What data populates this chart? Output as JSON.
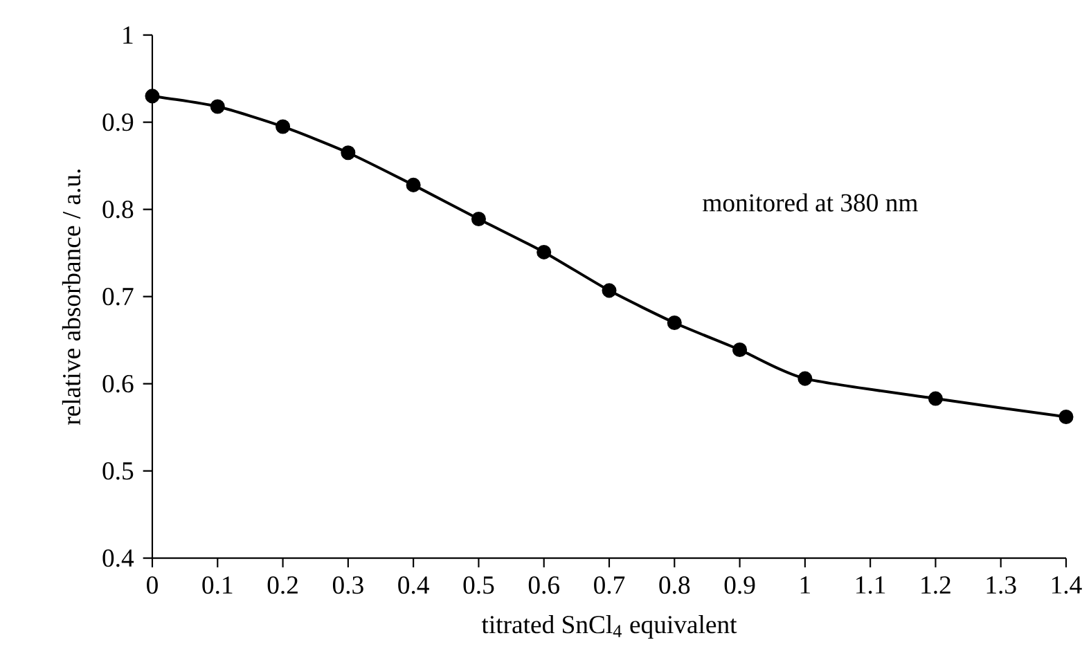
{
  "chart_data": {
    "type": "line",
    "xlabel": "titrated SnCl$_{4}$ equivalent",
    "ylabel": "relative absorbance / a.u.",
    "annotations": [
      "monitored at 380 nm"
    ],
    "x": [
      0,
      0.1,
      0.2,
      0.3,
      0.4,
      0.5,
      0.6,
      0.7,
      0.8,
      0.9,
      1.0,
      1.2,
      1.4
    ],
    "series": [
      {
        "color": "#000000",
        "values": [
          0.93,
          0.918,
          0.895,
          0.865,
          0.828,
          0.789,
          0.751,
          0.707,
          0.67,
          0.639,
          0.606,
          0.583,
          0.562
        ]
      }
    ],
    "xlim": [
      0,
      1.4
    ],
    "xticks": [
      0,
      0.1,
      0.2,
      0.3,
      0.4,
      0.5,
      0.6,
      0.7,
      0.8,
      0.9,
      1,
      1.1,
      1.2,
      1.3,
      1.4
    ],
    "ylim": [
      0.4,
      1
    ],
    "yticks": [
      0.4,
      0.5,
      0.6,
      0.7,
      0.8,
      0.9,
      1
    ],
    "marker": "circle",
    "line_style": "solid"
  }
}
